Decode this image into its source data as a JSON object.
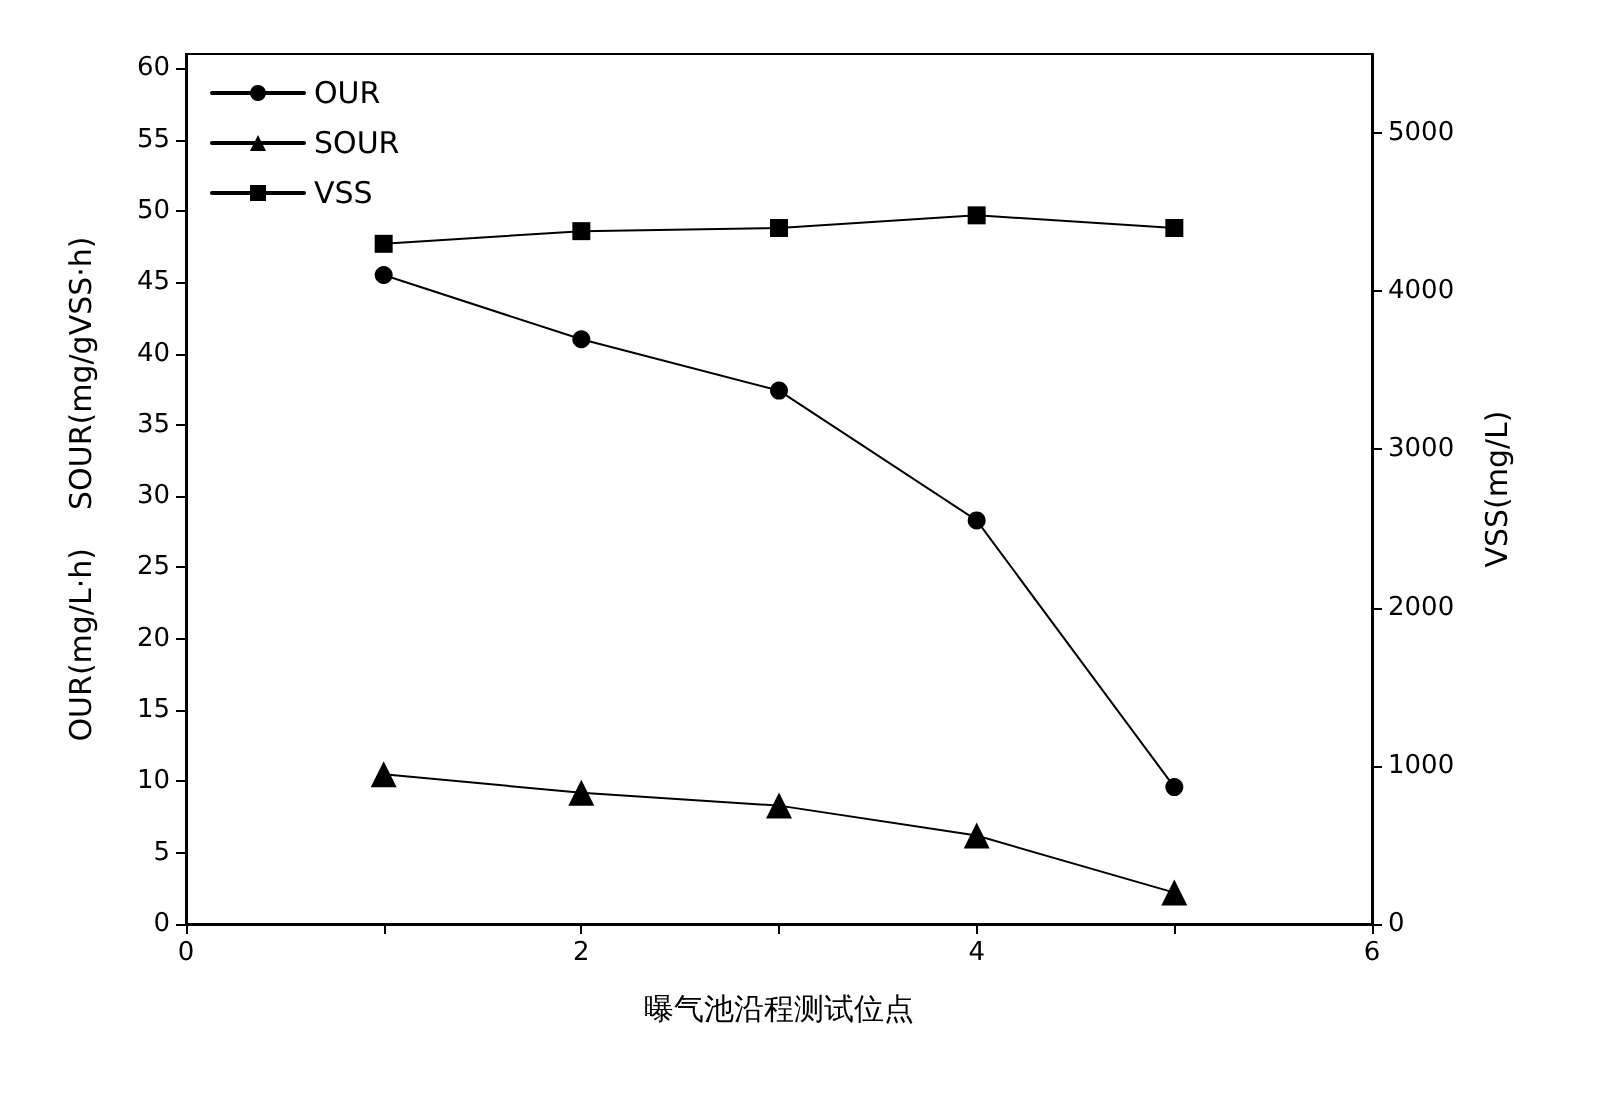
{
  "chart_data": {
    "type": "line",
    "xlabel": "曝气池沿程测试位点",
    "ylabel": "OUR(mg/L·h)    SOUR(mg/gVSS·h)",
    "y2label": "VSS(mg/L)",
    "x": [
      1,
      2,
      3,
      4,
      5
    ],
    "series": [
      {
        "name": "OUR",
        "color": "#000000",
        "marker": "circle",
        "values": [
          45.5,
          41.0,
          37.4,
          28.3,
          9.6
        ]
      },
      {
        "name": "SOUR",
        "color": "#000000",
        "marker": "triangle",
        "values": [
          10.5,
          9.2,
          8.3,
          6.2,
          2.2
        ]
      },
      {
        "name": "VSS",
        "color": "#000000",
        "marker": "square",
        "axis": "y2",
        "values": [
          4300,
          4380,
          4400,
          4480,
          4400
        ]
      }
    ],
    "xlim": [
      0,
      6
    ],
    "xticks": [
      0,
      {
        "value": 1,
        "label": null
      },
      2,
      {
        "value": 3,
        "label": null
      },
      4,
      {
        "value": 5,
        "label": null
      },
      6
    ],
    "ylim": [
      0,
      61
    ],
    "yticks": [
      0,
      5,
      10,
      15,
      20,
      25,
      30,
      35,
      40,
      45,
      50,
      55,
      60
    ],
    "y2lim": [
      0,
      5500
    ],
    "y2ticks": [
      0,
      1000,
      2000,
      3000,
      4000,
      5000
    ],
    "grid": false,
    "legend": "top left",
    "line_style": "solid"
  }
}
